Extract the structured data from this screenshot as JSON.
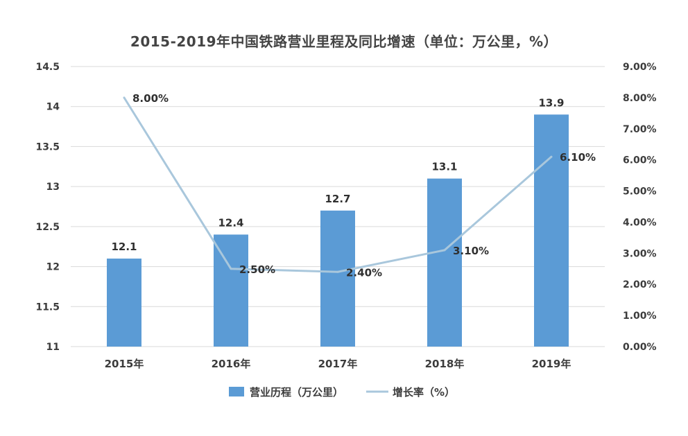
{
  "chart_data": {
    "type": "bar",
    "title": "2015-2019年中国铁路营业里程及同比增速（单位：万公里，%）",
    "categories": [
      "2015年",
      "2016年",
      "2017年",
      "2018年",
      "2019年"
    ],
    "series": [
      {
        "name": "营业历程（万公里）",
        "type": "bar",
        "axis": "left",
        "color": "#5b9bd5",
        "values": [
          12.1,
          12.4,
          12.7,
          13.1,
          13.9
        ],
        "labels": [
          "12.1",
          "12.4",
          "12.7",
          "13.1",
          "13.9"
        ]
      },
      {
        "name": "增长率（%）",
        "type": "line",
        "axis": "right",
        "color": "#a9c7dc",
        "values": [
          8.0,
          2.5,
          2.4,
          3.1,
          6.1
        ],
        "labels": [
          "8.00%",
          "2.50%",
          "2.40%",
          "3.10%",
          "6.10%"
        ]
      }
    ],
    "y_left": {
      "min": 11,
      "max": 14.5,
      "ticks": [
        11,
        11.5,
        12,
        12.5,
        13,
        13.5,
        14,
        14.5
      ],
      "tick_labels": [
        "11",
        "11.5",
        "12",
        "12.5",
        "13",
        "13.5",
        "14",
        "14.5"
      ]
    },
    "y_right": {
      "min": 0,
      "max": 9,
      "ticks": [
        0,
        1,
        2,
        3,
        4,
        5,
        6,
        7,
        8,
        9
      ],
      "tick_labels": [
        "0.00%",
        "1.00%",
        "2.00%",
        "3.00%",
        "4.00%",
        "5.00%",
        "6.00%",
        "7.00%",
        "8.00%",
        "9.00%"
      ]
    },
    "grid": true,
    "legend_position": "bottom",
    "gridline_color": "#d9d9d9"
  }
}
